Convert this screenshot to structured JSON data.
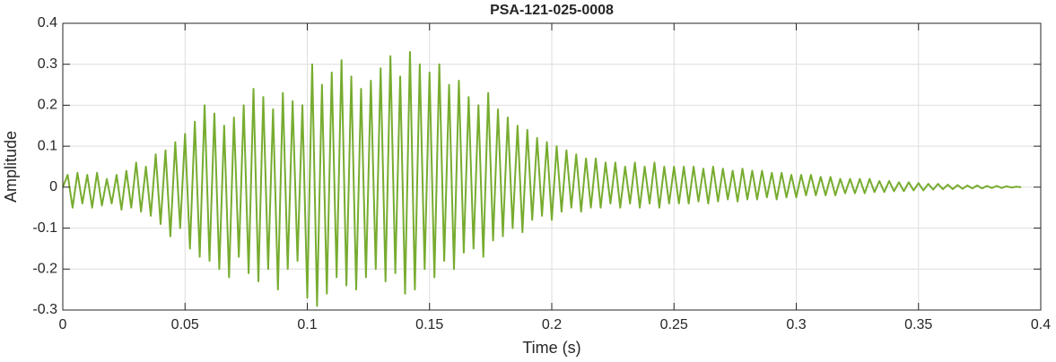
{
  "chart_data": {
    "type": "line",
    "title": "PSA-121-025-0008",
    "x_label": "Time (s)",
    "y_label": "Amplitude",
    "x": [
      0,
      0.002,
      0.004,
      0.006,
      0.008,
      0.01,
      0.012,
      0.014,
      0.016,
      0.018,
      0.02,
      0.022,
      0.024,
      0.026,
      0.028,
      0.03,
      0.032,
      0.034,
      0.036,
      0.038,
      0.04,
      0.042,
      0.044,
      0.046,
      0.048,
      0.05,
      0.052,
      0.054,
      0.056,
      0.058,
      0.06,
      0.062,
      0.064,
      0.066,
      0.068,
      0.07,
      0.072,
      0.074,
      0.076,
      0.078,
      0.08,
      0.082,
      0.084,
      0.086,
      0.088,
      0.09,
      0.092,
      0.094,
      0.096,
      0.098,
      0.1,
      0.102,
      0.104,
      0.106,
      0.108,
      0.11,
      0.112,
      0.114,
      0.116,
      0.118,
      0.12,
      0.122,
      0.124,
      0.126,
      0.128,
      0.13,
      0.132,
      0.134,
      0.136,
      0.138,
      0.14,
      0.142,
      0.144,
      0.146,
      0.148,
      0.15,
      0.152,
      0.154,
      0.156,
      0.158,
      0.16,
      0.162,
      0.164,
      0.166,
      0.168,
      0.17,
      0.172,
      0.174,
      0.176,
      0.178,
      0.18,
      0.182,
      0.184,
      0.186,
      0.188,
      0.19,
      0.192,
      0.194,
      0.196,
      0.198,
      0.2,
      0.202,
      0.204,
      0.206,
      0.208,
      0.21,
      0.212,
      0.214,
      0.216,
      0.218,
      0.22,
      0.222,
      0.224,
      0.226,
      0.228,
      0.23,
      0.232,
      0.234,
      0.236,
      0.238,
      0.24,
      0.242,
      0.244,
      0.246,
      0.248,
      0.25,
      0.252,
      0.254,
      0.256,
      0.258,
      0.26,
      0.262,
      0.264,
      0.266,
      0.268,
      0.27,
      0.272,
      0.274,
      0.276,
      0.278,
      0.28,
      0.282,
      0.284,
      0.286,
      0.288,
      0.29,
      0.292,
      0.294,
      0.296,
      0.298,
      0.3,
      0.302,
      0.304,
      0.306,
      0.308,
      0.31,
      0.312,
      0.314,
      0.316,
      0.318,
      0.32,
      0.322,
      0.324,
      0.326,
      0.328,
      0.33,
      0.332,
      0.334,
      0.336,
      0.338,
      0.34,
      0.342,
      0.344,
      0.346,
      0.348,
      0.35,
      0.352,
      0.354,
      0.356,
      0.358,
      0.36,
      0.362,
      0.364,
      0.366,
      0.368,
      0.37,
      0.372,
      0.374,
      0.376,
      0.378,
      0.38,
      0.382,
      0.384,
      0.386,
      0.388,
      0.39,
      0.392
    ],
    "series": [
      {
        "name": "Amplitude",
        "color": "#77ac30",
        "values": [
          0,
          0.03,
          -0.05,
          0.035,
          -0.04,
          0.03,
          -0.05,
          0.035,
          -0.045,
          0.02,
          -0.04,
          0.03,
          -0.055,
          0.04,
          -0.05,
          0.06,
          -0.06,
          0.05,
          -0.07,
          0.08,
          -0.09,
          0.09,
          -0.12,
          0.11,
          -0.1,
          0.13,
          -0.15,
          0.16,
          -0.17,
          0.2,
          -0.18,
          0.18,
          -0.2,
          0.15,
          -0.22,
          0.17,
          -0.17,
          0.2,
          -0.21,
          0.24,
          -0.23,
          0.22,
          -0.2,
          0.19,
          -0.25,
          0.23,
          -0.2,
          0.21,
          -0.18,
          0.2,
          -0.27,
          0.3,
          -0.29,
          0.25,
          -0.26,
          0.28,
          -0.22,
          0.31,
          -0.24,
          0.27,
          -0.25,
          0.24,
          -0.22,
          0.26,
          -0.2,
          0.29,
          -0.23,
          0.32,
          -0.21,
          0.27,
          -0.26,
          0.33,
          -0.25,
          0.3,
          -0.2,
          0.28,
          -0.22,
          0.3,
          -0.18,
          0.25,
          -0.2,
          0.26,
          -0.16,
          0.22,
          -0.15,
          0.2,
          -0.17,
          0.23,
          -0.13,
          0.19,
          -0.12,
          0.17,
          -0.1,
          0.15,
          -0.11,
          0.14,
          -0.08,
          0.12,
          -0.07,
          0.11,
          -0.08,
          0.1,
          -0.06,
          0.09,
          -0.05,
          0.08,
          -0.06,
          0.07,
          -0.05,
          0.07,
          -0.05,
          0.06,
          -0.04,
          0.06,
          -0.05,
          0.05,
          -0.04,
          0.06,
          -0.05,
          0.05,
          -0.04,
          0.06,
          -0.05,
          0.05,
          -0.04,
          0.05,
          -0.04,
          0.05,
          -0.04,
          0.05,
          -0.035,
          0.045,
          -0.04,
          0.05,
          -0.035,
          0.045,
          -0.03,
          0.04,
          -0.035,
          0.045,
          -0.03,
          0.04,
          -0.03,
          0.04,
          -0.025,
          0.035,
          -0.03,
          0.035,
          -0.025,
          0.03,
          -0.025,
          0.03,
          -0.02,
          0.03,
          -0.02,
          0.025,
          -0.02,
          0.025,
          -0.02,
          0.02,
          -0.015,
          0.02,
          -0.015,
          0.02,
          -0.015,
          0.02,
          -0.012,
          0.015,
          -0.012,
          0.015,
          -0.01,
          0.012,
          -0.01,
          0.012,
          -0.008,
          0.01,
          -0.008,
          0.008,
          -0.006,
          0.008,
          -0.005,
          0.006,
          -0.005,
          0.005,
          -0.004,
          0.004,
          -0.003,
          0.004,
          -0.003,
          0.003,
          -0.002,
          0.003,
          -0.002,
          0.002,
          -0.001,
          0.001,
          0
        ]
      }
    ],
    "xlim": [
      0,
      0.4
    ],
    "ylim": [
      -0.3,
      0.4
    ],
    "xticks": [
      0,
      0.05,
      0.1,
      0.15,
      0.2,
      0.25,
      0.3,
      0.35,
      0.4
    ],
    "yticks": [
      -0.3,
      -0.2,
      -0.1,
      0,
      0.1,
      0.2,
      0.3,
      0.4
    ],
    "grid": true
  }
}
